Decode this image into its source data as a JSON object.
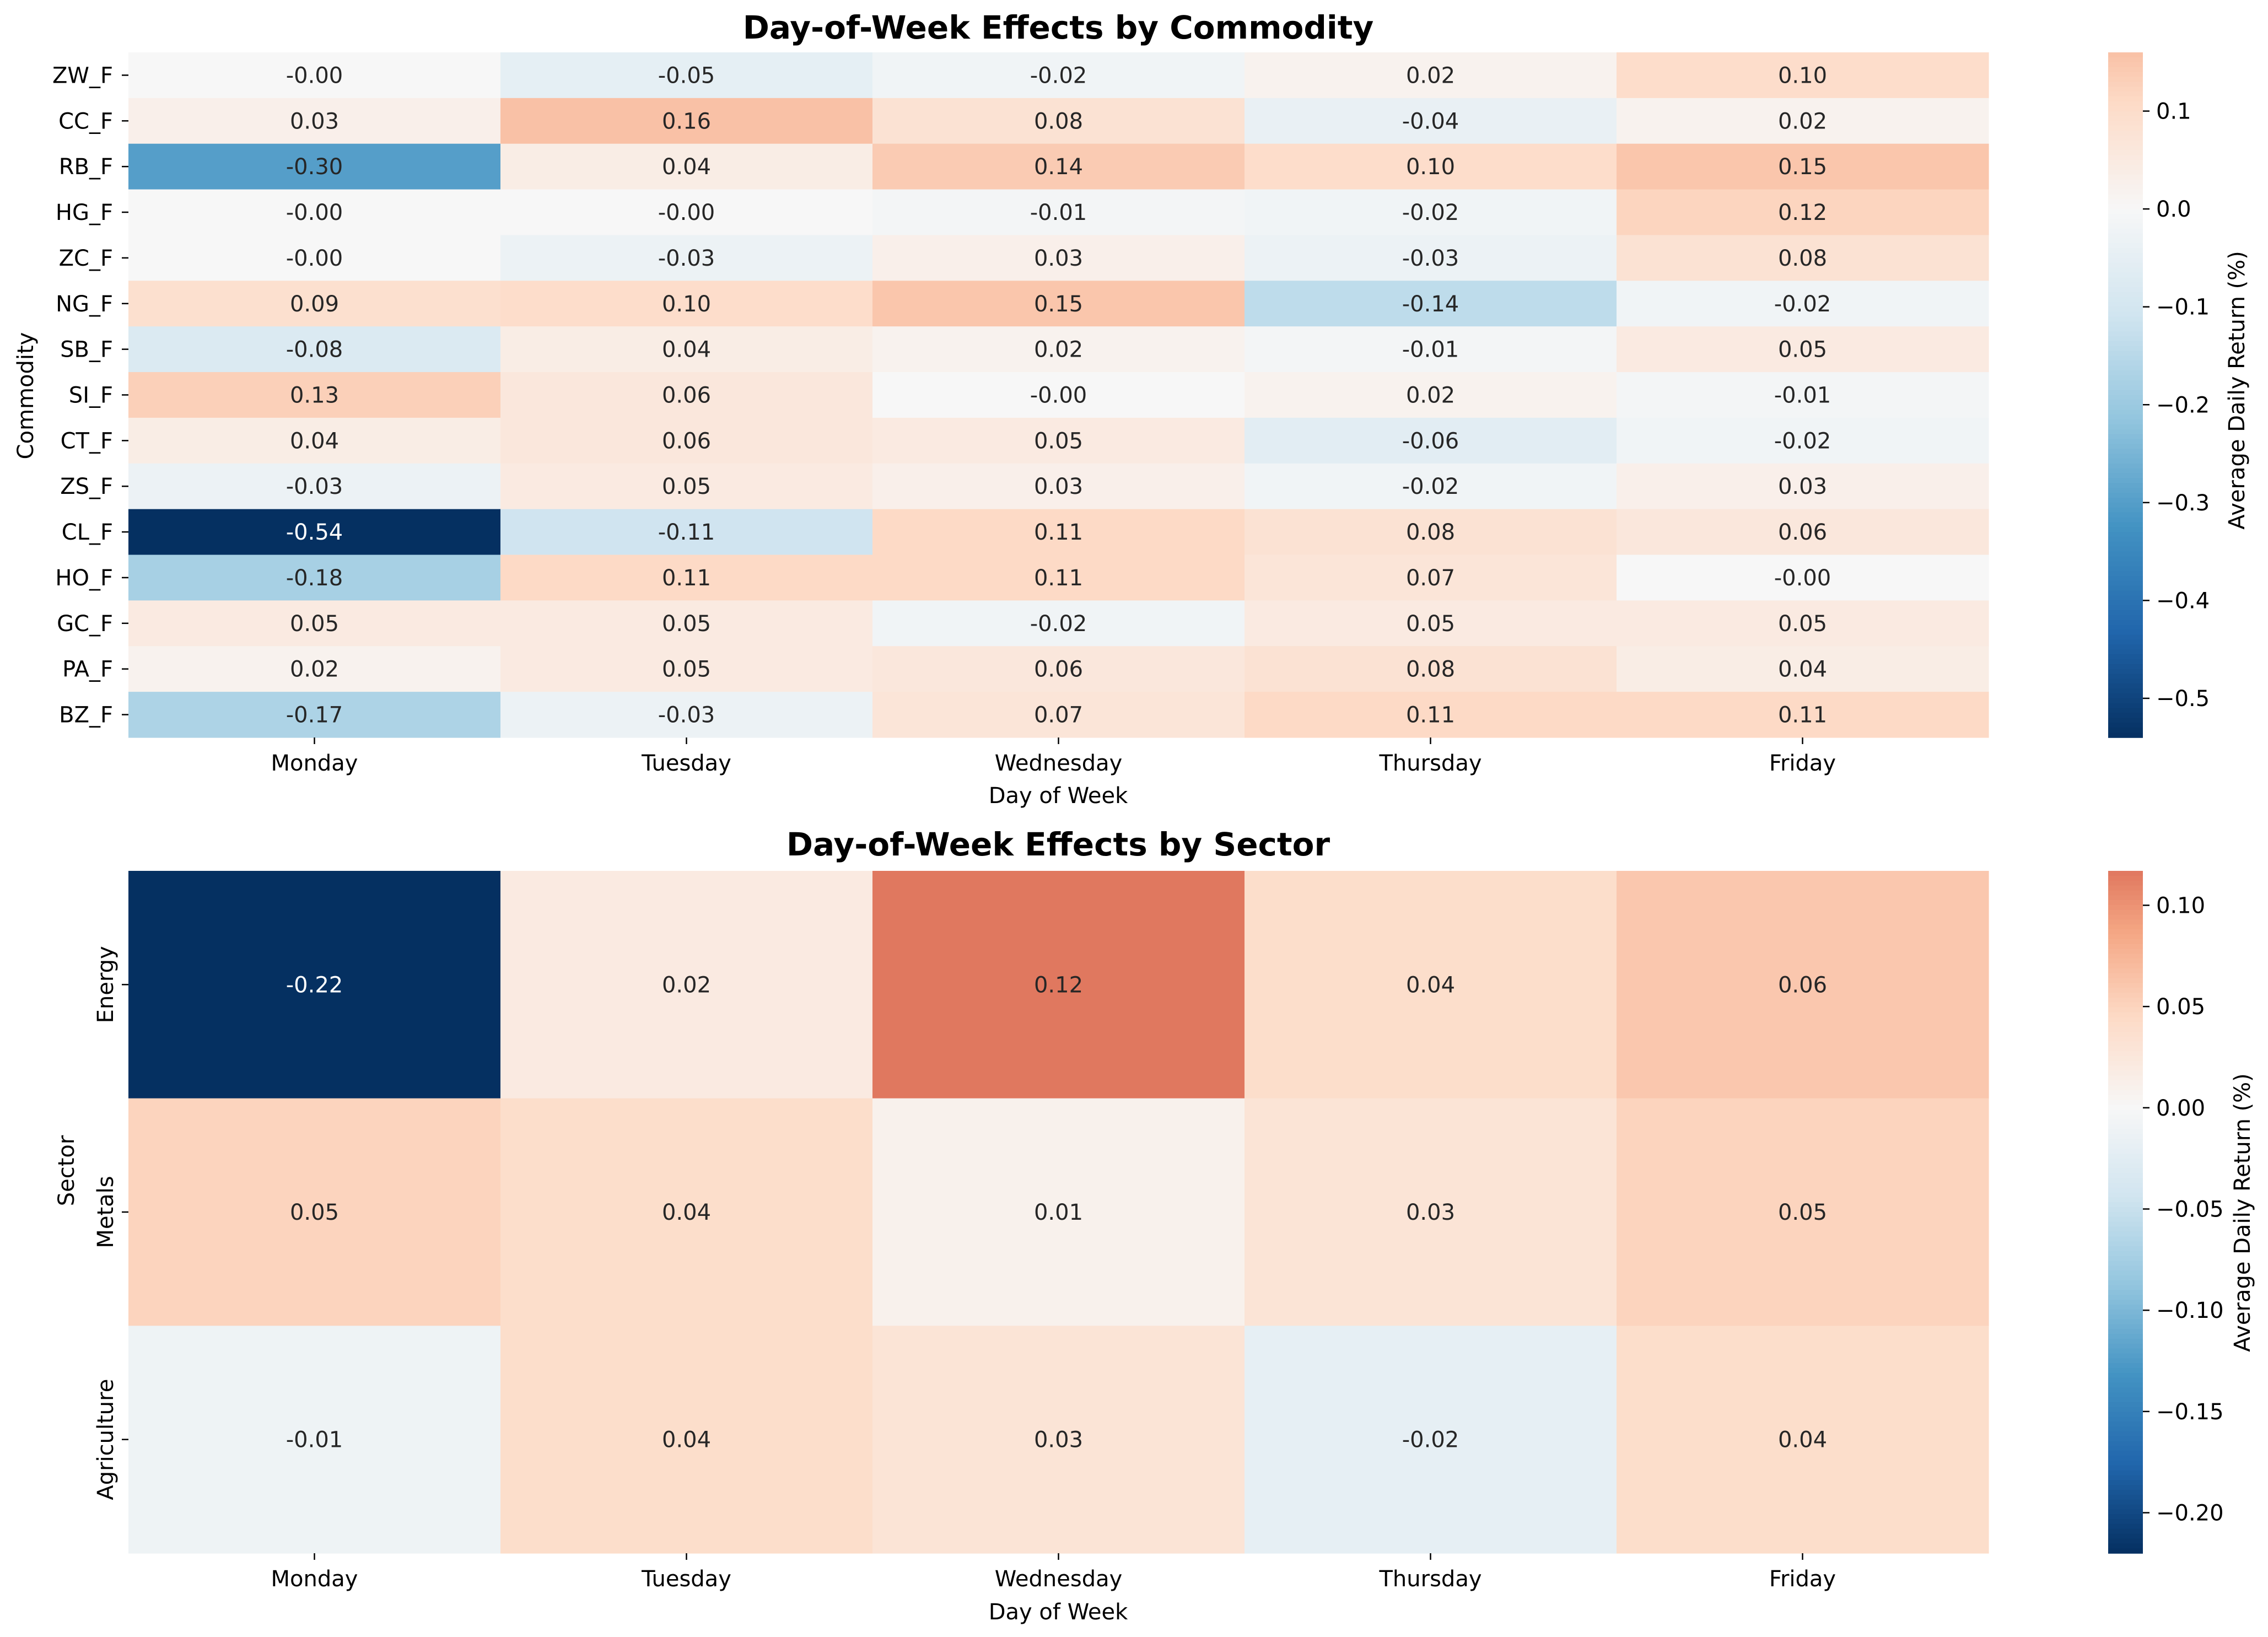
{
  "chart_data": [
    {
      "type": "heatmap",
      "title": "Day-of-Week Effects by Commodity",
      "xlabel": "Day of Week",
      "ylabel": "Commodity",
      "colorbar_label": "Average Daily Return (%)",
      "colormap": "RdBu_r",
      "vmin": -0.54,
      "vmax": 0.16,
      "colorbar_ticks": [
        "0.1",
        "0.0",
        "−0.1",
        "−0.2",
        "−0.3",
        "−0.4",
        "−0.5"
      ],
      "colorbar_tick_values": [
        0.1,
        0.0,
        -0.1,
        -0.2,
        -0.3,
        -0.4,
        -0.5
      ],
      "columns": [
        "Monday",
        "Tuesday",
        "Wednesday",
        "Thursday",
        "Friday"
      ],
      "rows": [
        "ZW_F",
        "CC_F",
        "RB_F",
        "HG_F",
        "ZC_F",
        "NG_F",
        "SB_F",
        "SI_F",
        "CT_F",
        "ZS_F",
        "CL_F",
        "HO_F",
        "GC_F",
        "PA_F",
        "BZ_F"
      ],
      "values": [
        [
          -0.0,
          -0.05,
          -0.02,
          0.02,
          0.1
        ],
        [
          0.03,
          0.16,
          0.08,
          -0.04,
          0.02
        ],
        [
          -0.3,
          0.04,
          0.14,
          0.1,
          0.15
        ],
        [
          -0.0,
          -0.0,
          -0.01,
          -0.02,
          0.12
        ],
        [
          -0.0,
          -0.03,
          0.03,
          -0.03,
          0.08
        ],
        [
          0.09,
          0.1,
          0.15,
          -0.14,
          -0.02
        ],
        [
          -0.08,
          0.04,
          0.02,
          -0.01,
          0.05
        ],
        [
          0.13,
          0.06,
          -0.0,
          0.02,
          -0.01
        ],
        [
          0.04,
          0.06,
          0.05,
          -0.06,
          -0.02
        ],
        [
          -0.03,
          0.05,
          0.03,
          -0.02,
          0.03
        ],
        [
          -0.54,
          -0.11,
          0.11,
          0.08,
          0.06
        ],
        [
          -0.18,
          0.11,
          0.11,
          0.07,
          -0.0
        ],
        [
          0.05,
          0.05,
          -0.02,
          0.05,
          0.05
        ],
        [
          0.02,
          0.05,
          0.06,
          0.08,
          0.04
        ],
        [
          -0.17,
          -0.03,
          0.07,
          0.11,
          0.11
        ]
      ],
      "labels": [
        [
          "-0.00",
          "-0.05",
          "-0.02",
          "0.02",
          "0.10"
        ],
        [
          "0.03",
          "0.16",
          "0.08",
          "-0.04",
          "0.02"
        ],
        [
          "-0.30",
          "0.04",
          "0.14",
          "0.10",
          "0.15"
        ],
        [
          "-0.00",
          "-0.00",
          "-0.01",
          "-0.02",
          "0.12"
        ],
        [
          "-0.00",
          "-0.03",
          "0.03",
          "-0.03",
          "0.08"
        ],
        [
          "0.09",
          "0.10",
          "0.15",
          "-0.14",
          "-0.02"
        ],
        [
          "-0.08",
          "0.04",
          "0.02",
          "-0.01",
          "0.05"
        ],
        [
          "0.13",
          "0.06",
          "-0.00",
          "0.02",
          "-0.01"
        ],
        [
          "0.04",
          "0.06",
          "0.05",
          "-0.06",
          "-0.02"
        ],
        [
          "-0.03",
          "0.05",
          "0.03",
          "-0.02",
          "0.03"
        ],
        [
          "-0.54",
          "-0.11",
          "0.11",
          "0.08",
          "0.06"
        ],
        [
          "-0.18",
          "0.11",
          "0.11",
          "0.07",
          "-0.00"
        ],
        [
          "0.05",
          "0.05",
          "-0.02",
          "0.05",
          "0.05"
        ],
        [
          "0.02",
          "0.05",
          "0.06",
          "0.08",
          "0.04"
        ],
        [
          "-0.17",
          "-0.03",
          "0.07",
          "0.11",
          "0.11"
        ]
      ]
    },
    {
      "type": "heatmap",
      "title": "Day-of-Week Effects by Sector",
      "xlabel": "Day of Week",
      "ylabel": "Sector",
      "colorbar_label": "Average Daily Return (%)",
      "colormap": "RdBu_r",
      "vmin": -0.22,
      "vmax": 0.117,
      "colorbar_ticks": [
        "0.10",
        "0.05",
        "0.00",
        "−0.05",
        "−0.10",
        "−0.15",
        "−0.20"
      ],
      "colorbar_tick_values": [
        0.1,
        0.05,
        0.0,
        -0.05,
        -0.1,
        -0.15,
        -0.2
      ],
      "columns": [
        "Monday",
        "Tuesday",
        "Wednesday",
        "Thursday",
        "Friday"
      ],
      "rows": [
        "Energy",
        "Metals",
        "Agriculture"
      ],
      "values": [
        [
          -0.22,
          0.02,
          0.117,
          0.04,
          0.06
        ],
        [
          0.05,
          0.04,
          0.01,
          0.03,
          0.05
        ],
        [
          -0.01,
          0.04,
          0.03,
          -0.02,
          0.04
        ]
      ],
      "labels": [
        [
          "-0.22",
          "0.02",
          "0.12",
          "0.04",
          "0.06"
        ],
        [
          "0.05",
          "0.04",
          "0.01",
          "0.03",
          "0.05"
        ],
        [
          "-0.01",
          "0.04",
          "0.03",
          "-0.02",
          "0.04"
        ]
      ]
    }
  ]
}
